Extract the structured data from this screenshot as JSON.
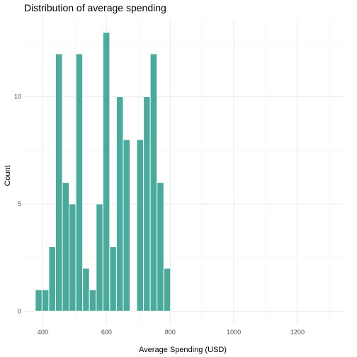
{
  "chart_data": {
    "type": "bar",
    "subtype": "histogram",
    "title": "Distribution of average spending",
    "xlabel": "Average Spending (USD)",
    "ylabel": "Count",
    "bin_width": 21.25,
    "first_bin_start": 376.25,
    "counts": [
      1,
      1,
      3,
      12,
      6,
      5,
      12,
      2,
      1,
      5,
      13,
      3,
      10,
      8,
      0,
      8,
      10,
      12,
      6,
      2
    ],
    "xlim": [
      341,
      1347
    ],
    "ylim": [
      -0.65,
      13.65
    ],
    "x_ticks": [
      400,
      600,
      800,
      1000,
      1200
    ],
    "y_ticks": [
      0,
      5,
      10
    ],
    "grid": true,
    "bar_color": "#4AAB9C",
    "bar_edge_color": "#ffffff"
  }
}
